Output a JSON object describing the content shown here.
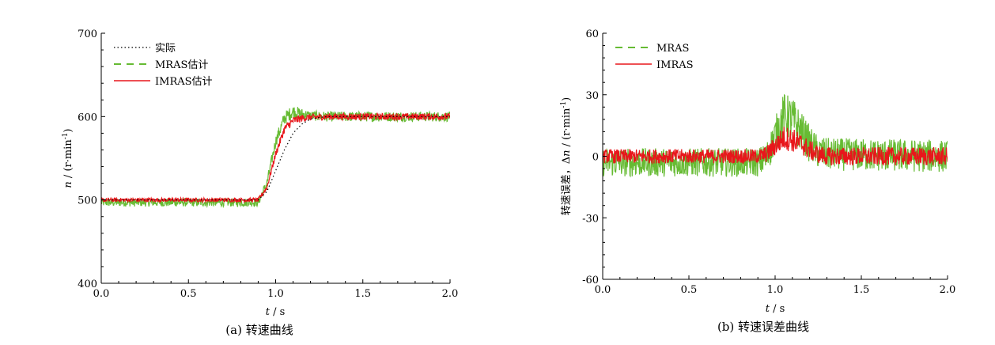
{
  "chart_data": [
    {
      "type": "line",
      "caption": "(a)  转速曲线",
      "xlabel_var": "t",
      "xlabel_unit": " / s",
      "ylabel_var": "n",
      "ylabel_unit": " / (r·min",
      "ylabel_exp": "-1",
      "ylabel_close": ")",
      "xlim": [
        0,
        2.0
      ],
      "ylim": [
        400,
        700
      ],
      "xticks": [
        "0.0",
        "0.5",
        "1.0",
        "1.5",
        "2.0"
      ],
      "yticks": [
        "400",
        "500",
        "600",
        "700"
      ],
      "legend_position": "top-left",
      "series": [
        {
          "name": "实际",
          "style": "dotted",
          "color": "#000000",
          "x": [
            0,
            0.9,
            0.95,
            1.0,
            1.05,
            1.1,
            1.15,
            1.2,
            1.25,
            1.3,
            2.0
          ],
          "y": [
            500,
            500,
            510,
            535,
            560,
            580,
            591,
            597,
            599,
            600,
            600
          ]
        },
        {
          "name": "MRAS估计",
          "style": "dashed",
          "color": "#66bb33",
          "x": [
            0,
            0.9,
            0.95,
            1.0,
            1.05,
            1.1,
            1.15,
            1.2,
            1.3,
            2.0
          ],
          "y": [
            497,
            497,
            520,
            570,
            598,
            606,
            603,
            601,
            600,
            600
          ],
          "noise": [
            5,
            5,
            6,
            7,
            8,
            8,
            7,
            6,
            6,
            6
          ]
        },
        {
          "name": "IMRAS估计",
          "style": "solid",
          "color": "#e8161b",
          "x": [
            0,
            0.9,
            0.95,
            1.0,
            1.05,
            1.1,
            1.15,
            1.2,
            1.3,
            2.0
          ],
          "y": [
            500,
            500,
            515,
            555,
            585,
            595,
            598,
            599,
            600,
            600
          ],
          "noise": [
            2.5,
            2.5,
            3,
            4,
            5,
            5,
            4.5,
            4,
            4,
            4
          ]
        }
      ]
    },
    {
      "type": "line",
      "caption": "(b)  转速误差曲线",
      "xlabel_var": "t",
      "xlabel_unit": " / s",
      "ylabel_prefix": "转速误差，Δ",
      "ylabel_var": "n",
      "ylabel_unit": " / (r·min",
      "ylabel_exp": "-1",
      "ylabel_close": ")",
      "xlim": [
        0,
        2.0
      ],
      "ylim": [
        -60,
        60
      ],
      "xticks": [
        "0.0",
        "0.5",
        "1.0",
        "1.5",
        "2.0"
      ],
      "yticks": [
        "-60",
        "-30",
        "0",
        "30",
        "60"
      ],
      "legend_position": "top-left",
      "series": [
        {
          "name": "MRAS",
          "style": "dashed",
          "color": "#66bb33",
          "x": [
            0,
            0.9,
            0.95,
            1.0,
            1.05,
            1.1,
            1.15,
            1.2,
            1.25,
            1.3,
            2.0
          ],
          "y": [
            -3,
            -3,
            -1,
            10,
            20,
            18,
            12,
            6,
            2,
            1,
            0
          ],
          "noise": [
            7,
            7,
            8,
            9,
            11,
            11,
            10,
            9,
            8,
            8,
            8
          ]
        },
        {
          "name": "IMRAS",
          "style": "solid",
          "color": "#e8161b",
          "x": [
            0,
            0.9,
            0.95,
            1.0,
            1.05,
            1.1,
            1.15,
            1.2,
            1.25,
            1.3,
            2.0
          ],
          "y": [
            0,
            0,
            1,
            5,
            9,
            8,
            6,
            3,
            1,
            0,
            0
          ],
          "noise": [
            3.5,
            3.5,
            4,
            5,
            6,
            6,
            5,
            5,
            4.5,
            4.5,
            4.5
          ]
        }
      ]
    }
  ]
}
